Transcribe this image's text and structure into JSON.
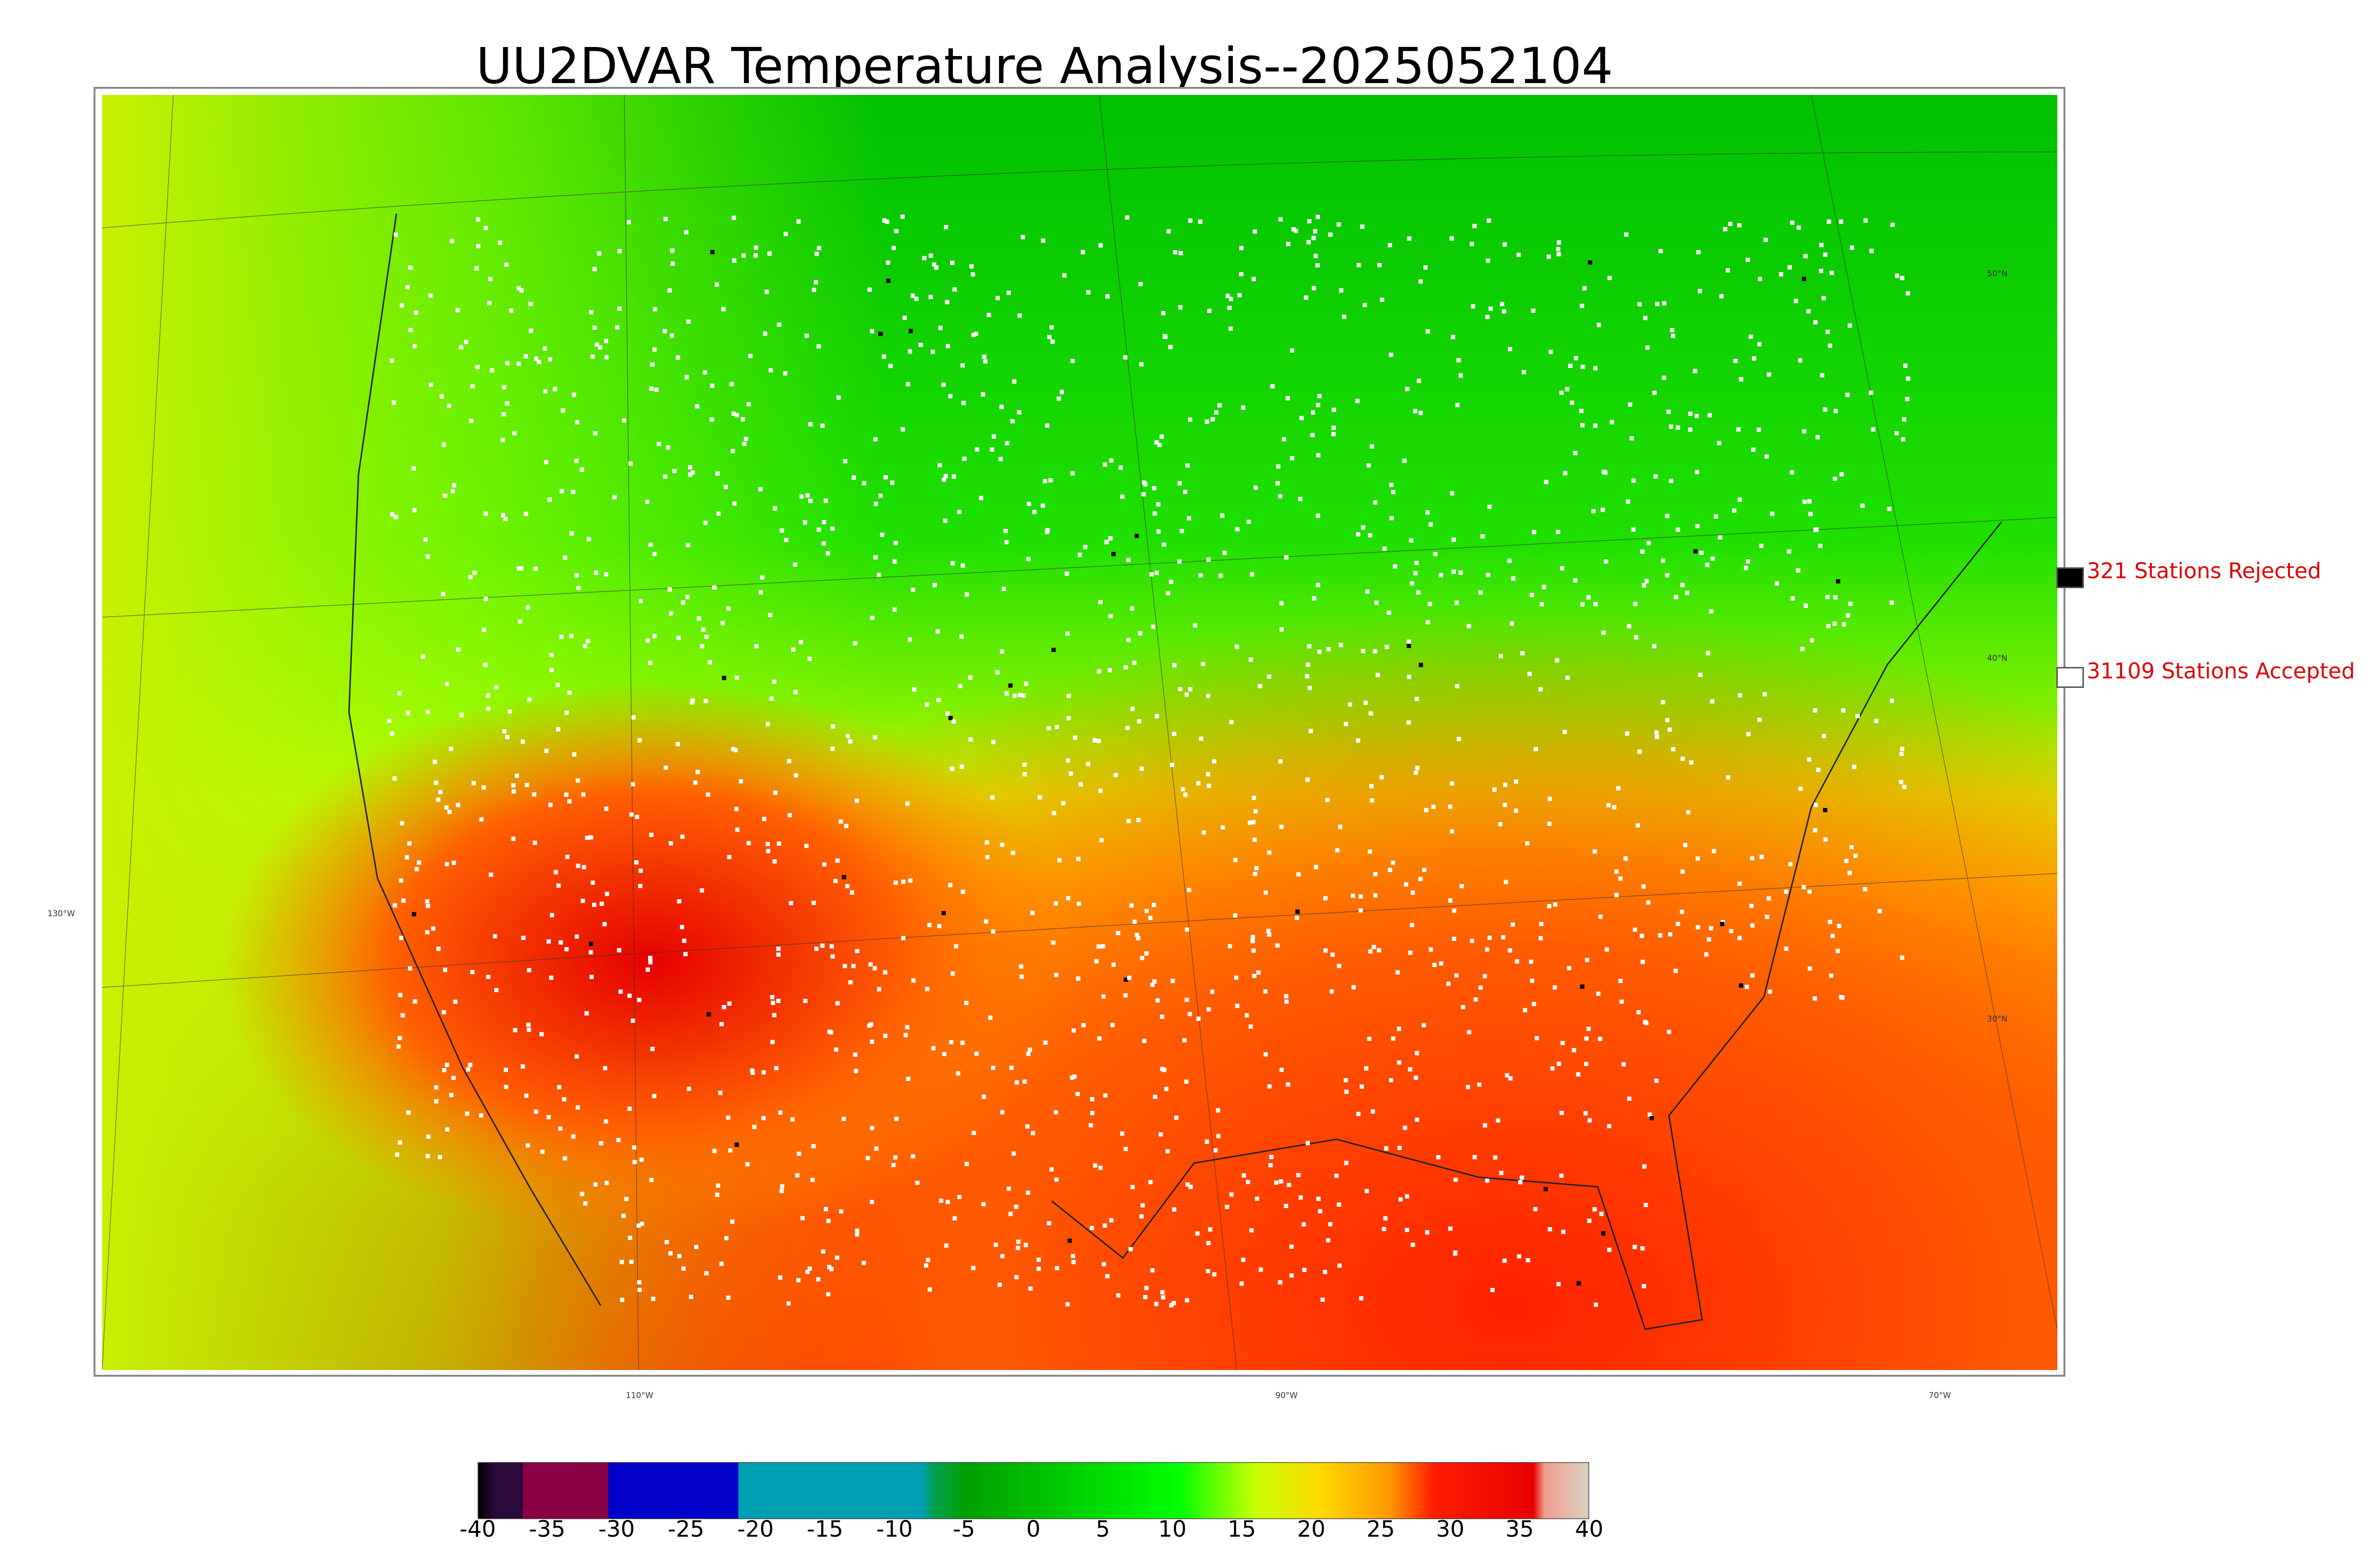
{
  "title": "UU2DVAR Temperature Analysis--2025052104",
  "legend": {
    "rejected": {
      "label": "321 Stations Rejected",
      "color": "#000000"
    },
    "accepted": {
      "label": "31109 Stations Accepted",
      "color": "#ffffff"
    }
  },
  "graticule": {
    "lat_labels": [
      "50°N",
      "40°N",
      "30°N"
    ],
    "lon_labels": [
      "130°W",
      "110°W",
      "90°W",
      "70°W"
    ]
  },
  "colorbar": {
    "ticks": [
      "-40",
      "-35",
      "-30",
      "-25",
      "-20",
      "-15",
      "-10",
      "-5",
      "0",
      "5",
      "10",
      "15",
      "20",
      "25",
      "30",
      "35",
      "40"
    ],
    "range": [
      -40,
      40
    ],
    "colors": [
      "#000000",
      "#2a0a3a",
      "#8a0045",
      "#0000c8",
      "#00a0b4",
      "#00a050",
      "#00c800",
      "#00ff00",
      "#c8ff00",
      "#ffd700",
      "#ff9900",
      "#ff1e00",
      "#e80000",
      "#f0a090",
      "#d8d0c0"
    ]
  }
}
